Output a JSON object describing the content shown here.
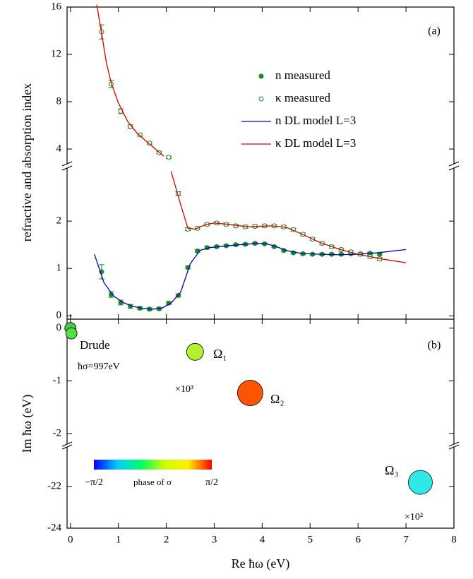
{
  "chart_data": [
    {
      "type": "scatter-line",
      "ylabel": "refractive and absorption index",
      "panel_label": "(a)",
      "ysegments": [
        {
          "ylim": [
            -0.07,
            3.12
          ],
          "yticks": [
            0,
            1,
            2
          ]
        },
        {
          "ylim": [
            2.75,
            16
          ],
          "yticks": [
            4,
            8,
            12,
            16
          ]
        }
      ],
      "series": [
        {
          "name": "n  measured",
          "style": "filled",
          "color": "#1a8c1a",
          "x": [
            0.65,
            0.85,
            1.05,
            1.25,
            1.45,
            1.65,
            1.85,
            2.05,
            2.25,
            2.45,
            2.65,
            2.85,
            3.05,
            3.25,
            3.45,
            3.65,
            3.85,
            4.05,
            4.25,
            4.45,
            4.65,
            4.85,
            5.05,
            5.25,
            5.45,
            5.65,
            5.85,
            6.05,
            6.25,
            6.45
          ],
          "values": [
            0.93,
            0.45,
            0.28,
            0.2,
            0.16,
            0.14,
            0.15,
            0.27,
            0.43,
            1.02,
            1.37,
            1.44,
            1.46,
            1.48,
            1.5,
            1.51,
            1.53,
            1.52,
            1.46,
            1.38,
            1.33,
            1.31,
            1.3,
            1.3,
            1.3,
            1.3,
            1.31,
            1.31,
            1.32,
            1.3
          ],
          "errors": [
            0.15,
            0.06,
            0.05,
            0.04,
            0.03,
            0.03,
            0.03,
            0.03,
            0.03,
            0.03,
            0.03,
            0.03,
            0.02,
            0.02,
            0.02,
            0.02,
            0.02,
            0.02,
            0.02,
            0.02,
            0.02,
            0.02,
            0.02,
            0.02,
            0.02,
            0.02,
            0.02,
            0.02,
            0.02,
            0.02
          ]
        },
        {
          "name": "κ  measured",
          "style": "open",
          "color": "#1a8c1a",
          "x": [
            0.65,
            0.85,
            1.05,
            1.25,
            1.45,
            1.65,
            1.85,
            2.05,
            2.25,
            2.45,
            2.65,
            2.85,
            3.05,
            3.25,
            3.45,
            3.65,
            3.85,
            4.05,
            4.25,
            4.45,
            4.65,
            4.85,
            5.05,
            5.25,
            5.45,
            5.65,
            5.85,
            6.05,
            6.25,
            6.45
          ],
          "values": [
            13.9,
            9.5,
            7.2,
            5.9,
            5.2,
            4.5,
            3.7,
            3.3,
            2.58,
            1.83,
            1.85,
            1.93,
            1.96,
            1.93,
            1.9,
            1.88,
            1.89,
            1.9,
            1.9,
            1.88,
            1.82,
            1.72,
            1.62,
            1.53,
            1.46,
            1.4,
            1.35,
            1.3,
            1.25,
            1.2
          ],
          "errors": [
            0.6,
            0.3,
            0.2,
            0.15,
            0.12,
            0.1,
            0.1,
            0.1,
            0.04,
            0.03,
            0.03,
            0.03,
            0.03,
            0.03,
            0.03,
            0.03,
            0.03,
            0.03,
            0.03,
            0.03,
            0.03,
            0.03,
            0.03,
            0.03,
            0.03,
            0.03,
            0.03,
            0.03,
            0.03,
            0.03
          ]
        },
        {
          "name": "n  DL model L=3",
          "style": "line",
          "color": "#0000cc",
          "x": [
            0.5,
            0.7,
            0.9,
            1.1,
            1.3,
            1.5,
            1.7,
            1.9,
            2.1,
            2.3,
            2.5,
            2.7,
            2.9,
            3.2,
            3.5,
            3.9,
            4.1,
            4.3,
            4.5,
            4.8,
            5.2,
            5.6,
            6.0,
            6.4,
            7.0
          ],
          "values": [
            1.3,
            0.7,
            0.42,
            0.28,
            0.2,
            0.16,
            0.14,
            0.16,
            0.27,
            0.5,
            1.1,
            1.38,
            1.44,
            1.47,
            1.5,
            1.53,
            1.52,
            1.46,
            1.38,
            1.32,
            1.3,
            1.29,
            1.3,
            1.33,
            1.4
          ]
        },
        {
          "name": "κ  DL model L=3",
          "style": "line",
          "color": "#dd0000",
          "x": [
            0.55,
            0.65,
            0.75,
            0.85,
            1.0,
            1.2,
            1.4,
            1.6,
            1.8,
            1.95,
            2.1,
            2.3,
            2.45,
            2.6,
            2.8,
            3.0,
            3.3,
            3.7,
            4.2,
            4.5,
            4.8,
            5.2,
            5.6,
            6.0,
            6.5,
            7.0
          ],
          "values": [
            16.2,
            13.8,
            11.3,
            9.6,
            7.9,
            6.3,
            5.3,
            4.6,
            3.9,
            3.4,
            3.05,
            2.35,
            1.85,
            1.83,
            1.92,
            1.96,
            1.93,
            1.88,
            1.9,
            1.87,
            1.74,
            1.55,
            1.41,
            1.3,
            1.2,
            1.12
          ]
        }
      ]
    },
    {
      "type": "bubble",
      "xlabel": "Re ħω (eV)",
      "ylabel": "Im ħω (eV)",
      "panel_label": "(b)",
      "xlim": [
        -0.07,
        8
      ],
      "xticks": [
        0,
        1,
        2,
        3,
        4,
        5,
        6,
        7,
        8
      ],
      "ysegments": [
        {
          "ylim": [
            -24,
            -20.1
          ],
          "yticks": [
            -24,
            -22
          ]
        },
        {
          "ylim": [
            -2.2,
            0.17
          ],
          "yticks": [
            -2,
            -1,
            0
          ]
        }
      ],
      "x": [
        0.0,
        0.02,
        2.6,
        3.75,
        7.3
      ],
      "values": [
        0,
        -0.1,
        -0.45,
        -1.23,
        -21.8
      ],
      "sizes": [
        8,
        8,
        12,
        18,
        17
      ],
      "colors": [
        "#44cc44",
        "#55dd44",
        "#b5f030",
        "#ff5500",
        "#30e8e8"
      ],
      "point_labels": [
        null,
        null,
        "Ω₁",
        "Ω₂",
        "Ω₃"
      ],
      "annotations": [
        "Drude",
        "ħσ=997eV",
        "×10³",
        "×10²"
      ],
      "colorbar": {
        "colors": [
          "#0000ff",
          "#00ccff",
          "#00ff66",
          "#ccff00",
          "#ffee00",
          "#ff0000"
        ],
        "min_label": "−π/2",
        "label": "phase of σ",
        "max_label": "π/2"
      }
    }
  ]
}
